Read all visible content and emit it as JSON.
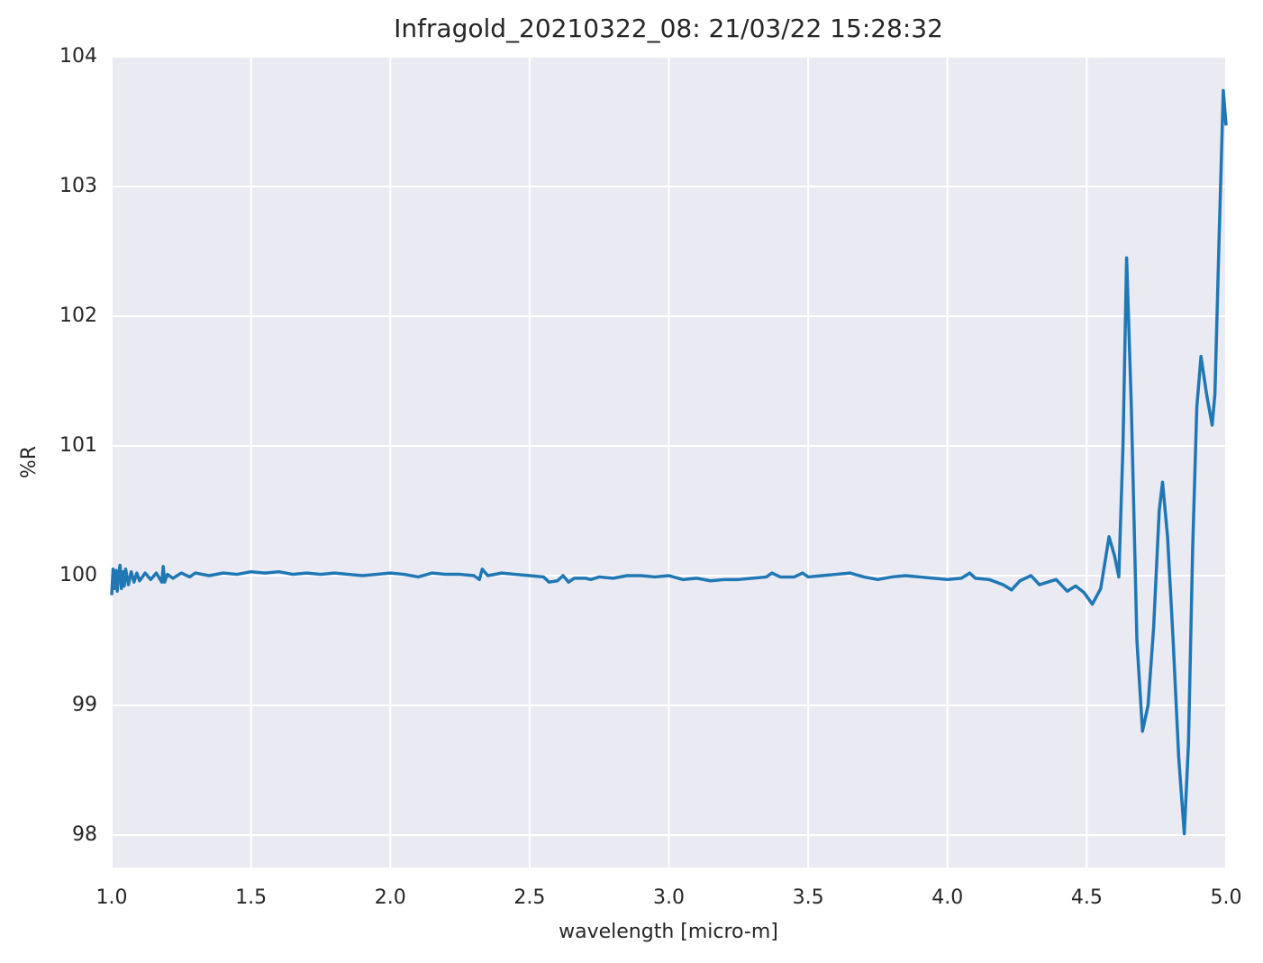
{
  "chart_data": {
    "type": "line",
    "title": "Infragold_20210322_08:  21/03/22 15:28:32",
    "x_label": "wavelength [micro-m]",
    "y_label": "%R",
    "color": "#1f77b4",
    "grid": true,
    "xlim": [
      1.0,
      5.0
    ],
    "ylim": [
      97.75,
      104
    ],
    "xticks": [
      {
        "value": 1,
        "label": "1.0"
      },
      1.5,
      {
        "value": 2,
        "label": "2.0"
      },
      2.5,
      {
        "value": 3,
        "label": "3.0"
      },
      3.5,
      {
        "value": 4,
        "label": "4.0"
      },
      4.5,
      {
        "value": 5,
        "label": "5.0"
      }
    ],
    "yticks": [
      98,
      99,
      100,
      101,
      102,
      103,
      104
    ],
    "x": [
      1.0,
      1.005,
      1.01,
      1.015,
      1.02,
      1.025,
      1.03,
      1.035,
      1.04,
      1.045,
      1.05,
      1.06,
      1.07,
      1.08,
      1.09,
      1.1,
      1.12,
      1.14,
      1.16,
      1.18,
      1.185,
      1.19,
      1.2,
      1.22,
      1.25,
      1.28,
      1.3,
      1.35,
      1.4,
      1.45,
      1.5,
      1.55,
      1.6,
      1.65,
      1.7,
      1.75,
      1.8,
      1.85,
      1.9,
      1.95,
      2.0,
      2.05,
      2.1,
      2.15,
      2.2,
      2.25,
      2.3,
      2.32,
      2.33,
      2.35,
      2.4,
      2.45,
      2.5,
      2.55,
      2.57,
      2.6,
      2.62,
      2.64,
      2.66,
      2.7,
      2.72,
      2.75,
      2.8,
      2.85,
      2.9,
      2.95,
      3.0,
      3.05,
      3.1,
      3.15,
      3.2,
      3.25,
      3.3,
      3.35,
      3.37,
      3.4,
      3.45,
      3.48,
      3.5,
      3.55,
      3.6,
      3.65,
      3.7,
      3.75,
      3.8,
      3.85,
      3.9,
      3.95,
      4.0,
      4.05,
      4.08,
      4.1,
      4.15,
      4.2,
      4.23,
      4.26,
      4.3,
      4.33,
      4.36,
      4.39,
      4.43,
      4.46,
      4.49,
      4.52,
      4.55,
      4.58,
      4.6,
      4.615,
      4.63,
      4.643,
      4.66,
      4.68,
      4.7,
      4.72,
      4.74,
      4.76,
      4.772,
      4.79,
      4.81,
      4.83,
      4.85,
      4.865,
      4.88,
      4.895,
      4.91,
      4.93,
      4.95,
      4.96,
      4.975,
      4.99,
      5.0
    ],
    "values": [
      99.85,
      100.05,
      99.9,
      100.04,
      99.88,
      100.02,
      100.08,
      99.9,
      100.03,
      99.92,
      100.05,
      99.93,
      100.03,
      99.95,
      100.02,
      99.96,
      100.02,
      99.97,
      100.02,
      99.95,
      100.07,
      99.95,
      100.01,
      99.98,
      100.02,
      99.99,
      100.02,
      100.0,
      100.02,
      100.01,
      100.03,
      100.02,
      100.03,
      100.01,
      100.02,
      100.01,
      100.02,
      100.01,
      100.0,
      100.01,
      100.02,
      100.01,
      99.99,
      100.02,
      100.01,
      100.01,
      100.0,
      99.97,
      100.05,
      100.0,
      100.02,
      100.01,
      100.0,
      99.99,
      99.95,
      99.96,
      100.0,
      99.95,
      99.98,
      99.98,
      99.97,
      99.99,
      99.98,
      100.0,
      100.0,
      99.99,
      100.0,
      99.97,
      99.98,
      99.96,
      99.97,
      99.97,
      99.98,
      99.99,
      100.02,
      99.99,
      99.99,
      100.02,
      99.99,
      100.0,
      100.01,
      100.02,
      99.99,
      99.97,
      99.99,
      100.0,
      99.99,
      99.98,
      99.97,
      99.98,
      100.02,
      99.98,
      99.97,
      99.93,
      99.89,
      99.96,
      100.0,
      99.93,
      99.95,
      99.97,
      99.88,
      99.92,
      99.87,
      99.78,
      99.9,
      100.3,
      100.15,
      99.99,
      101.0,
      102.45,
      101.3,
      99.5,
      98.8,
      99.0,
      99.6,
      100.5,
      100.72,
      100.3,
      99.5,
      98.6,
      98.01,
      98.7,
      100.2,
      101.3,
      101.69,
      101.4,
      101.16,
      101.4,
      102.6,
      103.74,
      103.47
    ]
  }
}
